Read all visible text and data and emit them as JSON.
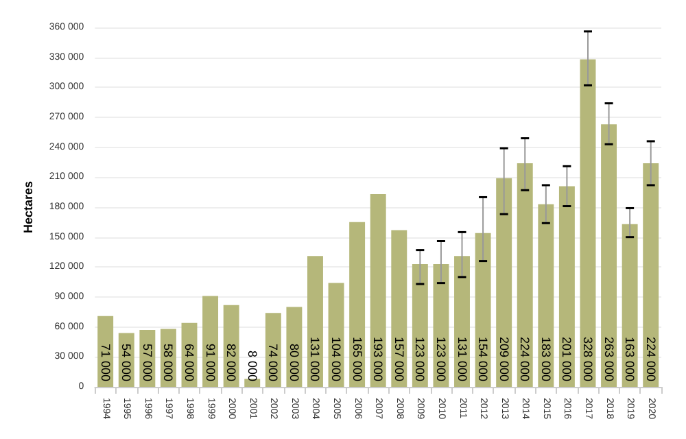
{
  "chart_data": {
    "type": "bar",
    "ylabel": "Hectares",
    "categories": [
      "1994",
      "1995",
      "1996",
      "1997",
      "1998",
      "1999",
      "2000",
      "2001",
      "2002",
      "2003",
      "2004",
      "2005",
      "2006",
      "2007",
      "2008",
      "2009",
      "2010",
      "2011",
      "2012",
      "2013",
      "2014",
      "2015",
      "2016",
      "2017",
      "2018",
      "2019",
      "2020"
    ],
    "values": [
      71000,
      54000,
      57000,
      58000,
      64000,
      91000,
      82000,
      8000,
      74000,
      80000,
      131000,
      104000,
      165000,
      193000,
      157000,
      123000,
      123000,
      131000,
      154000,
      209000,
      224000,
      183000,
      201000,
      328000,
      263000,
      163000,
      224000
    ],
    "errors": [
      null,
      null,
      null,
      null,
      null,
      null,
      null,
      null,
      null,
      null,
      null,
      null,
      null,
      null,
      null,
      [
        103000,
        137000
      ],
      [
        104000,
        146000
      ],
      [
        110000,
        155000
      ],
      [
        126000,
        190000
      ],
      [
        173000,
        239000
      ],
      [
        197000,
        249000
      ],
      [
        164000,
        202000
      ],
      [
        181000,
        221000
      ],
      [
        302000,
        356000
      ],
      [
        243000,
        284000
      ],
      [
        150000,
        179000
      ],
      [
        202000,
        246000
      ]
    ],
    "color": "#b5b77a",
    "data_labels": true,
    "ylim": [
      0,
      360000
    ],
    "yticks": [
      {
        "value": 0,
        "label": "0"
      },
      {
        "value": 30000,
        "label": "30 000"
      },
      {
        "value": 60000,
        "label": "60 000"
      },
      {
        "value": 90000,
        "label": "90 000"
      },
      {
        "value": 120000,
        "label": "120 000"
      },
      {
        "value": 150000,
        "label": "150 000"
      },
      {
        "value": 180000,
        "label": "180 000"
      },
      {
        "value": 210000,
        "label": "210 000"
      },
      {
        "value": 240000,
        "label": "240 000"
      },
      {
        "value": 270000,
        "label": "270 000"
      },
      {
        "value": 300000,
        "label": "300 000"
      },
      {
        "value": 330000,
        "label": "330 000"
      },
      {
        "value": 360000,
        "label": "360 000"
      }
    ],
    "grid": "y"
  }
}
